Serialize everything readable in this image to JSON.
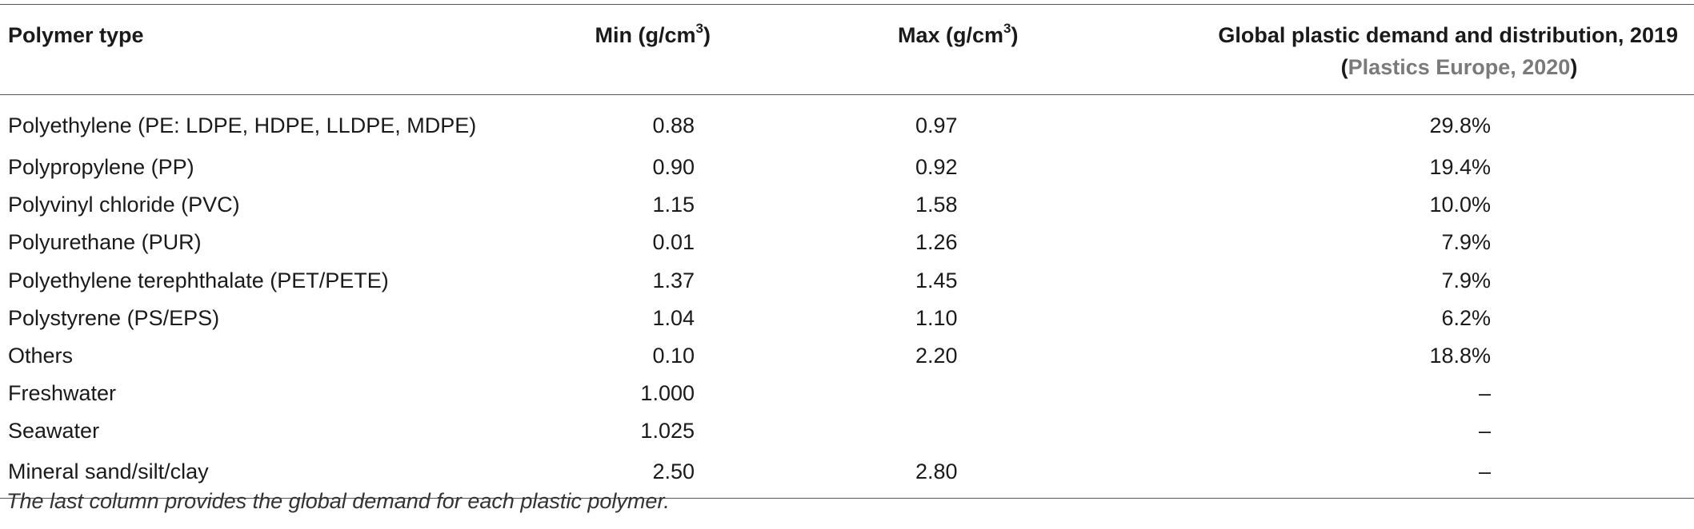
{
  "table": {
    "headers": {
      "polymer": "Polymer type",
      "min_label": "Min (g/cm",
      "min_sup": "3",
      "min_close": ")",
      "max_label": "Max (g/cm",
      "max_sup": "3",
      "max_close": ")",
      "demand_line1": "Global plastic demand and distribution, 2019",
      "demand_open": "(",
      "demand_source": "Plastics Europe, 2020",
      "demand_close": ")"
    },
    "rows": [
      {
        "polymer": "Polyethylene (PE: LDPE, HDPE, LLDPE, MDPE)",
        "min": "0.88",
        "max": "0.97",
        "demand": "29.8%"
      },
      {
        "polymer": "Polypropylene (PP)",
        "min": "0.90",
        "max": "0.92",
        "demand": "19.4%"
      },
      {
        "polymer": "Polyvinyl chloride (PVC)",
        "min": "1.15",
        "max": "1.58",
        "demand": "10.0%"
      },
      {
        "polymer": "Polyurethane (PUR)",
        "min": "0.01",
        "max": "1.26",
        "demand": "7.9%"
      },
      {
        "polymer": "Polyethylene terephthalate (PET/PETE)",
        "min": "1.37",
        "max": "1.45",
        "demand": "7.9%"
      },
      {
        "polymer": "Polystyrene (PS/EPS)",
        "min": "1.04",
        "max": "1.10",
        "demand": "6.2%"
      },
      {
        "polymer": "Others",
        "min": "0.10",
        "max": "2.20",
        "demand": "18.8%"
      },
      {
        "polymer": "Freshwater",
        "min": "1.000",
        "max": "",
        "demand": "–"
      },
      {
        "polymer": "Seawater",
        "min": "1.025",
        "max": "",
        "demand": "–"
      },
      {
        "polymer": "Mineral sand/silt/clay",
        "min": "2.50",
        "max": "2.80",
        "demand": "–"
      }
    ]
  },
  "footnote": "The last column provides the global demand for each plastic polymer."
}
